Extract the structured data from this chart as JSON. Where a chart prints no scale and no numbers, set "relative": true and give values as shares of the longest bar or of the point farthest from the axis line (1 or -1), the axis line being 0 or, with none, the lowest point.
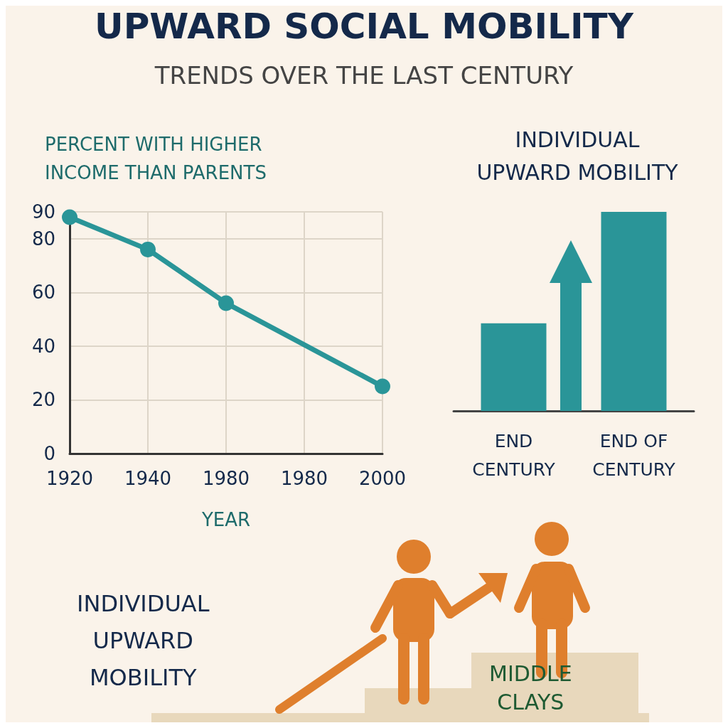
{
  "chart_data": [
    {
      "type": "line",
      "title": "UPWARD SOCIAL MOBILITY",
      "subtitle": "TRENDS OVER THE LAST CENTURY",
      "ylabel": "PERCENT WITH HIGHER\nINCOME THAN PARENTS",
      "xlabel": "YEAR",
      "categories": [
        "1920",
        "1940",
        "1980",
        "1980",
        "2000"
      ],
      "series": [
        {
          "color": "#2a9598",
          "values": [
            88,
            76,
            56,
            null,
            25
          ]
        }
      ],
      "ylim": [
        0,
        90
      ],
      "yticks": [
        0,
        20,
        40,
        60,
        80,
        90
      ],
      "grid": true,
      "marker": "circle",
      "line_style": "solid"
    },
    {
      "type": "bar",
      "title": "INDIVIDUAL\nUPWARD MOBILITY",
      "categories": [
        "END\nCENTURY",
        "END OF\nCENTURY"
      ],
      "values": [
        0.44,
        1
      ],
      "color": "#2a9598",
      "relative": true
    },
    {
      "type": "other",
      "annotations": [
        "INDIVIDUAL\nUPWARD\nMOBILITY",
        "MIDDLE\nCLAYS"
      ]
    }
  ]
}
